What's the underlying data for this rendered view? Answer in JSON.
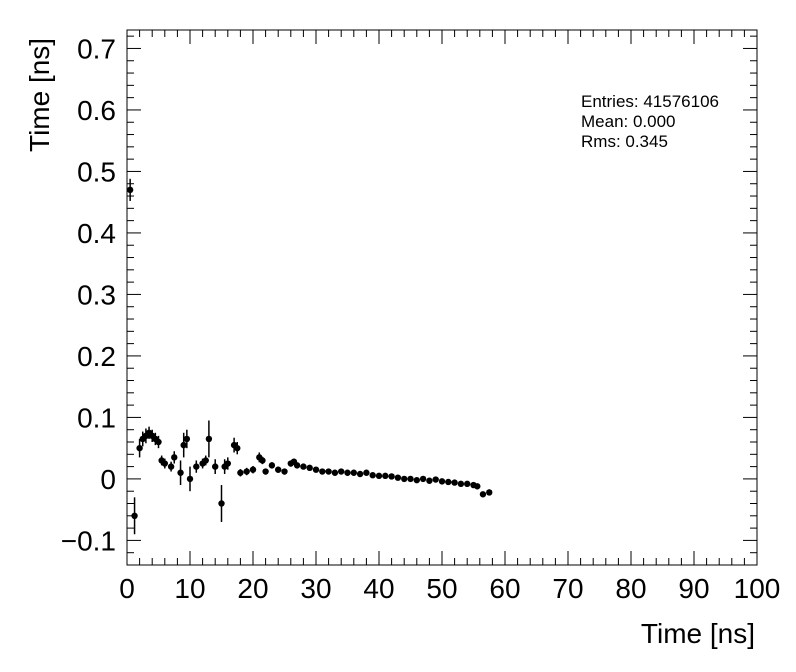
{
  "chart_data": {
    "type": "scatter",
    "title": "",
    "xlabel": "Time [ns]",
    "ylabel": "Time [ns]",
    "xlim": [
      0,
      100
    ],
    "ylim": [
      -0.14,
      0.73
    ],
    "x_ticks": [
      0,
      10,
      20,
      30,
      40,
      50,
      60,
      70,
      80,
      90,
      100
    ],
    "x_tick_labels": [
      "0",
      "10",
      "20",
      "30",
      "40",
      "50",
      "60",
      "70",
      "80",
      "90",
      "100"
    ],
    "x_minor_step": 2,
    "y_ticks": [
      -0.1,
      0,
      0.1,
      0.2,
      0.3,
      0.4,
      0.5,
      0.6,
      0.7
    ],
    "y_tick_labels": [
      "−0.1",
      "0",
      "0.1",
      "0.2",
      "0.3",
      "0.4",
      "0.5",
      "0.6",
      "0.7"
    ],
    "y_minor_step": 0.02,
    "grid": false,
    "legend": "none",
    "marker": {
      "shape": "circle",
      "color": "#000000",
      "radius": 3.2
    },
    "error_bar_color": "#000000",
    "stats": {
      "entries": "Entries: 41576106",
      "mean": "Mean: 0.000",
      "rms": "Rms: 0.345"
    },
    "points": [
      [
        0.5,
        0.47,
        0.018
      ],
      [
        1.2,
        -0.06,
        0.03
      ],
      [
        2.0,
        0.05,
        0.015
      ],
      [
        2.5,
        0.065,
        0.012
      ],
      [
        3.0,
        0.07,
        0.012
      ],
      [
        3.5,
        0.075,
        0.01
      ],
      [
        4.0,
        0.07,
        0.01
      ],
      [
        4.5,
        0.065,
        0.01
      ],
      [
        5.0,
        0.06,
        0.01
      ],
      [
        5.5,
        0.03,
        0.008
      ],
      [
        6.0,
        0.025,
        0.008
      ],
      [
        7.0,
        0.02,
        0.008
      ],
      [
        7.5,
        0.035,
        0.01
      ],
      [
        8.5,
        0.01,
        0.02
      ],
      [
        9.0,
        0.055,
        0.02
      ],
      [
        9.5,
        0.065,
        0.015
      ],
      [
        10.0,
        0.0,
        0.02
      ],
      [
        11.0,
        0.02,
        0.01
      ],
      [
        12.0,
        0.025,
        0.008
      ],
      [
        12.5,
        0.03,
        0.008
      ],
      [
        13.0,
        0.065,
        0.03
      ],
      [
        14.0,
        0.02,
        0.012
      ],
      [
        15.0,
        -0.04,
        0.03
      ],
      [
        15.5,
        0.02,
        0.012
      ],
      [
        16.0,
        0.025,
        0.01
      ],
      [
        17.0,
        0.055,
        0.012
      ],
      [
        17.5,
        0.05,
        0.01
      ],
      [
        18.0,
        0.01,
        0.006
      ],
      [
        19.0,
        0.012,
        0.006
      ],
      [
        20.0,
        0.015,
        0.006
      ],
      [
        21.0,
        0.035,
        0.008
      ],
      [
        21.5,
        0.03,
        0.006
      ],
      [
        22.0,
        0.012,
        0.005
      ],
      [
        23.0,
        0.022,
        0.005
      ],
      [
        24.0,
        0.015,
        0.005
      ],
      [
        25.0,
        0.012,
        0.005
      ],
      [
        26.0,
        0.025,
        0.005
      ],
      [
        26.5,
        0.028,
        0.005
      ],
      [
        27.0,
        0.022,
        0.004
      ],
      [
        28.0,
        0.02,
        0.004
      ],
      [
        29.0,
        0.018,
        0.004
      ],
      [
        30.0,
        0.015,
        0.004
      ],
      [
        31.0,
        0.012,
        0.004
      ],
      [
        32.0,
        0.012,
        0.004
      ],
      [
        33.0,
        0.01,
        0.004
      ],
      [
        34.0,
        0.012,
        0.004
      ],
      [
        35.0,
        0.01,
        0.004
      ],
      [
        36.0,
        0.01,
        0.004
      ],
      [
        37.0,
        0.008,
        0.004
      ],
      [
        38.0,
        0.01,
        0.004
      ],
      [
        39.0,
        0.006,
        0.003
      ],
      [
        40.0,
        0.005,
        0.003
      ],
      [
        41.0,
        0.005,
        0.003
      ],
      [
        42.0,
        0.004,
        0.003
      ],
      [
        43.0,
        0.002,
        0.003
      ],
      [
        44.0,
        0.0,
        0.003
      ],
      [
        45.0,
        0.0,
        0.003
      ],
      [
        46.0,
        -0.002,
        0.003
      ],
      [
        47.0,
        0.0,
        0.003
      ],
      [
        48.0,
        -0.003,
        0.003
      ],
      [
        49.0,
        -0.001,
        0.003
      ],
      [
        50.0,
        -0.004,
        0.003
      ],
      [
        51.0,
        -0.005,
        0.003
      ],
      [
        52.0,
        -0.006,
        0.003
      ],
      [
        53.0,
        -0.008,
        0.003
      ],
      [
        54.0,
        -0.008,
        0.003
      ],
      [
        55.0,
        -0.01,
        0.003
      ],
      [
        55.6,
        -0.012,
        0.003
      ],
      [
        56.5,
        -0.025,
        0.004
      ],
      [
        57.5,
        -0.022,
        0.005
      ]
    ]
  }
}
